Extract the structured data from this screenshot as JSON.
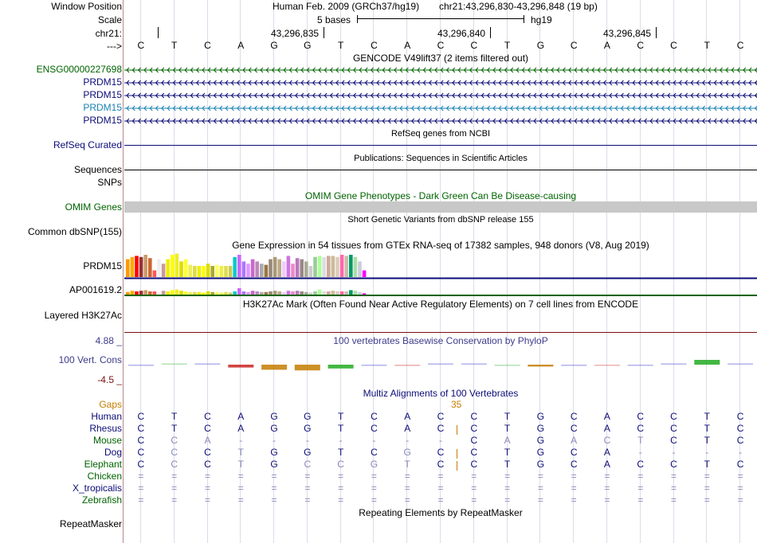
{
  "colors": {
    "green": "#006400",
    "navy": "#0c0c78",
    "teal": "#1a82b4",
    "orange": "#c47d00",
    "bluegrey": "#3c3c8c",
    "maroon": "#7b1010"
  },
  "header": {
    "assembly": "Human Feb. 2009 (GRCh37/hg19)",
    "position": "chr21:43,296,830-43,296,848 (19 bp)",
    "scale_label": "5 bases",
    "db": "hg19",
    "ticks": [
      "43,296,835",
      "43,296,840",
      "43,296,845"
    ],
    "arrow": "--->"
  },
  "left_labels": {
    "window_position": "Window Position",
    "scale": "Scale",
    "chrom": "chr21:",
    "ensg": "ENSG00000227698",
    "prdm15": "PRDM15",
    "refseq": "RefSeq Curated",
    "sequences": "Sequences",
    "snps": "SNPs",
    "omim": "OMIM Genes",
    "common_dbsnp": "Common dbSNP(155)",
    "gtex_prdm15": "PRDM15",
    "gtex_ap": "AP001619.2",
    "h3k27ac": "Layered H3K27Ac",
    "phylop_max": "4.88 _",
    "phylop_name": "100 Vert. Cons",
    "phylop_min": "-4.5 _",
    "gaps": "Gaps",
    "repeatmasker": "RepeatMasker"
  },
  "dna": [
    "C",
    "T",
    "C",
    "A",
    "G",
    "G",
    "T",
    "C",
    "A",
    "C",
    "C",
    "T",
    "G",
    "C",
    "A",
    "C",
    "C",
    "T",
    "C"
  ],
  "tracks": {
    "gencode": "GENCODE V49lift37 (2 items filtered out)",
    "refseq": "RefSeq genes from NCBI",
    "publications": "Publications: Sequences in Scientific Articles",
    "omim": "OMIM Gene Phenotypes - Dark Green Can Be Disease-causing",
    "dbsnp": "Short Genetic Variants from dbSNP release 155",
    "gtex": "Gene Expression in 54 tissues from GTEx RNA-seq of 17382 samples, 948 donors (V8, Aug 2019)",
    "h3k27ac": "H3K27Ac Mark (Often Found Near Active Regulatory Elements) on 7 cell lines from ENCODE",
    "phylop": "100 vertebrates Basewise Conservation by PhyloP",
    "multiz": "Multiz Alignments of 100 Vertebrates",
    "gap_count": "35",
    "repeatmasker": "Repeating Elements by RepeatMasker"
  },
  "gtex_colors": [
    "#ff9900",
    "#ffaa00",
    "#ff0000",
    "#993333",
    "#cc9966",
    "#cc6633",
    "#ff5555",
    "#eeeeee",
    "#cc9999",
    "#eeee00",
    "#ffff00",
    "#eeee22",
    "#dddd00",
    "#ffff33",
    "#eeee55",
    "#dddd44",
    "#eeee00",
    "#ffff00",
    "#dddd00",
    "#aaaa33",
    "#ffff66",
    "#eeee44",
    "#dddd55",
    "#cccc55",
    "#00cccc",
    "#cc66ff",
    "#aa77ff",
    "#dd99ff",
    "#cc66cc",
    "#bb88bb",
    "#aaaaaa",
    "#997744",
    "#998877",
    "#aa9977",
    "#bbaa88",
    "#eeccff",
    "#cc77dd",
    "#ee88cc",
    "#bb77bb",
    "#998888",
    "#aaaa99",
    "#cccccc",
    "#99cc99",
    "#aaff99",
    "#dddddd",
    "#ccaa99",
    "#ccbb99",
    "#ddccbb",
    "#ff66aa",
    "#ccbbaa",
    "#009966",
    "#aaddaa",
    "#ccccdd",
    "#ff00ff"
  ],
  "gtex_prdm15_values": [
    0.8,
    0.9,
    0.95,
    0.9,
    1.0,
    0.85,
    0.3,
    0.8,
    0.6,
    0.8,
    1.0,
    1.05,
    0.7,
    0.8,
    0.55,
    0.5,
    0.5,
    0.5,
    0.6,
    0.5,
    0.55,
    0.5,
    0.5,
    0.5,
    0.9,
    1.0,
    0.7,
    0.6,
    0.8,
    0.7,
    0.6,
    0.55,
    0.8,
    0.9,
    0.8,
    0.7,
    0.95,
    0.6,
    0.85,
    0.8,
    0.7,
    0.5,
    0.9,
    0.95,
    0.9,
    0.95,
    0.95,
    0.9,
    1.0,
    0.95,
    1.0,
    0.9,
    0.7,
    0.3
  ],
  "gtex_ap_values": [
    0.4,
    0.6,
    0.5,
    0.6,
    0.7,
    0.5,
    0.5,
    0.4,
    0.6,
    0.5,
    0.7,
    0.8,
    0.6,
    0.5,
    0.4,
    0.4,
    0.4,
    0.3,
    0.5,
    0.4,
    0.4,
    0.3,
    0.4,
    0.3,
    0.5,
    1.0,
    0.5,
    0.4,
    0.6,
    0.5,
    0.4,
    0.4,
    0.5,
    0.6,
    0.5,
    0.4,
    0.6,
    0.5,
    0.6,
    0.5,
    0.4,
    0.3,
    0.5,
    0.8,
    0.5,
    0.5,
    0.6,
    0.5,
    0.5,
    0.5,
    0.7,
    0.6,
    0.4,
    0.2
  ],
  "phylop_values": [
    -0.3,
    0,
    0.2,
    -0.9,
    -1.6,
    -1.8,
    -1.2,
    -0.2,
    -0.4,
    0,
    0.1,
    -0.1,
    -0.6,
    -0.1,
    -0.1,
    -0.1,
    0,
    1.5,
    0
  ],
  "species": [
    {
      "name": "Human",
      "bases": [
        "C",
        "T",
        "C",
        "A",
        "G",
        "G",
        "T",
        "C",
        "A",
        "C",
        "C",
        "T",
        "G",
        "C",
        "A",
        "C",
        "C",
        "T",
        "C"
      ]
    },
    {
      "name": "Rhesus",
      "bases": [
        "C",
        "T",
        "C",
        "A",
        "G",
        "G",
        "T",
        "C",
        "A",
        "C",
        "C",
        "T",
        "G",
        "C",
        "A",
        "C",
        "C",
        "T",
        "C"
      ]
    },
    {
      "name": "Mouse",
      "bases": [
        "C",
        "C",
        "A",
        "-",
        "-",
        "-",
        "-",
        "-",
        "-",
        "-",
        "C",
        "A",
        "G",
        "A",
        "C",
        "T",
        "C",
        "T",
        "C"
      ]
    },
    {
      "name": "Dog",
      "bases": [
        "C",
        "C",
        "C",
        "T",
        "G",
        "G",
        "T",
        "C",
        "G",
        "C",
        "C",
        "T",
        "G",
        "C",
        "A",
        "-",
        "-",
        "-",
        "-"
      ]
    },
    {
      "name": "Elephant",
      "bases": [
        "C",
        "C",
        "C",
        "T",
        "G",
        "C",
        "C",
        "G",
        "T",
        "C",
        "C",
        "T",
        "G",
        "C",
        "A",
        "C",
        "C",
        "T",
        "C"
      ]
    },
    {
      "name": "Chicken",
      "bases": [
        "=",
        "=",
        "=",
        "=",
        "=",
        "=",
        "=",
        "=",
        "=",
        "=",
        "=",
        "=",
        "=",
        "=",
        "=",
        "=",
        "=",
        "=",
        "="
      ]
    },
    {
      "name": "X_tropicalis",
      "bases": [
        "=",
        "=",
        "=",
        "=",
        "=",
        "=",
        "=",
        "=",
        "=",
        "=",
        "=",
        "=",
        "=",
        "=",
        "=",
        "=",
        "=",
        "=",
        "="
      ]
    },
    {
      "name": "Zebrafish",
      "bases": [
        "=",
        "=",
        "=",
        "=",
        "=",
        "=",
        "=",
        "=",
        "=",
        "=",
        "=",
        "=",
        "=",
        "=",
        "=",
        "=",
        "=",
        "=",
        "="
      ]
    }
  ]
}
